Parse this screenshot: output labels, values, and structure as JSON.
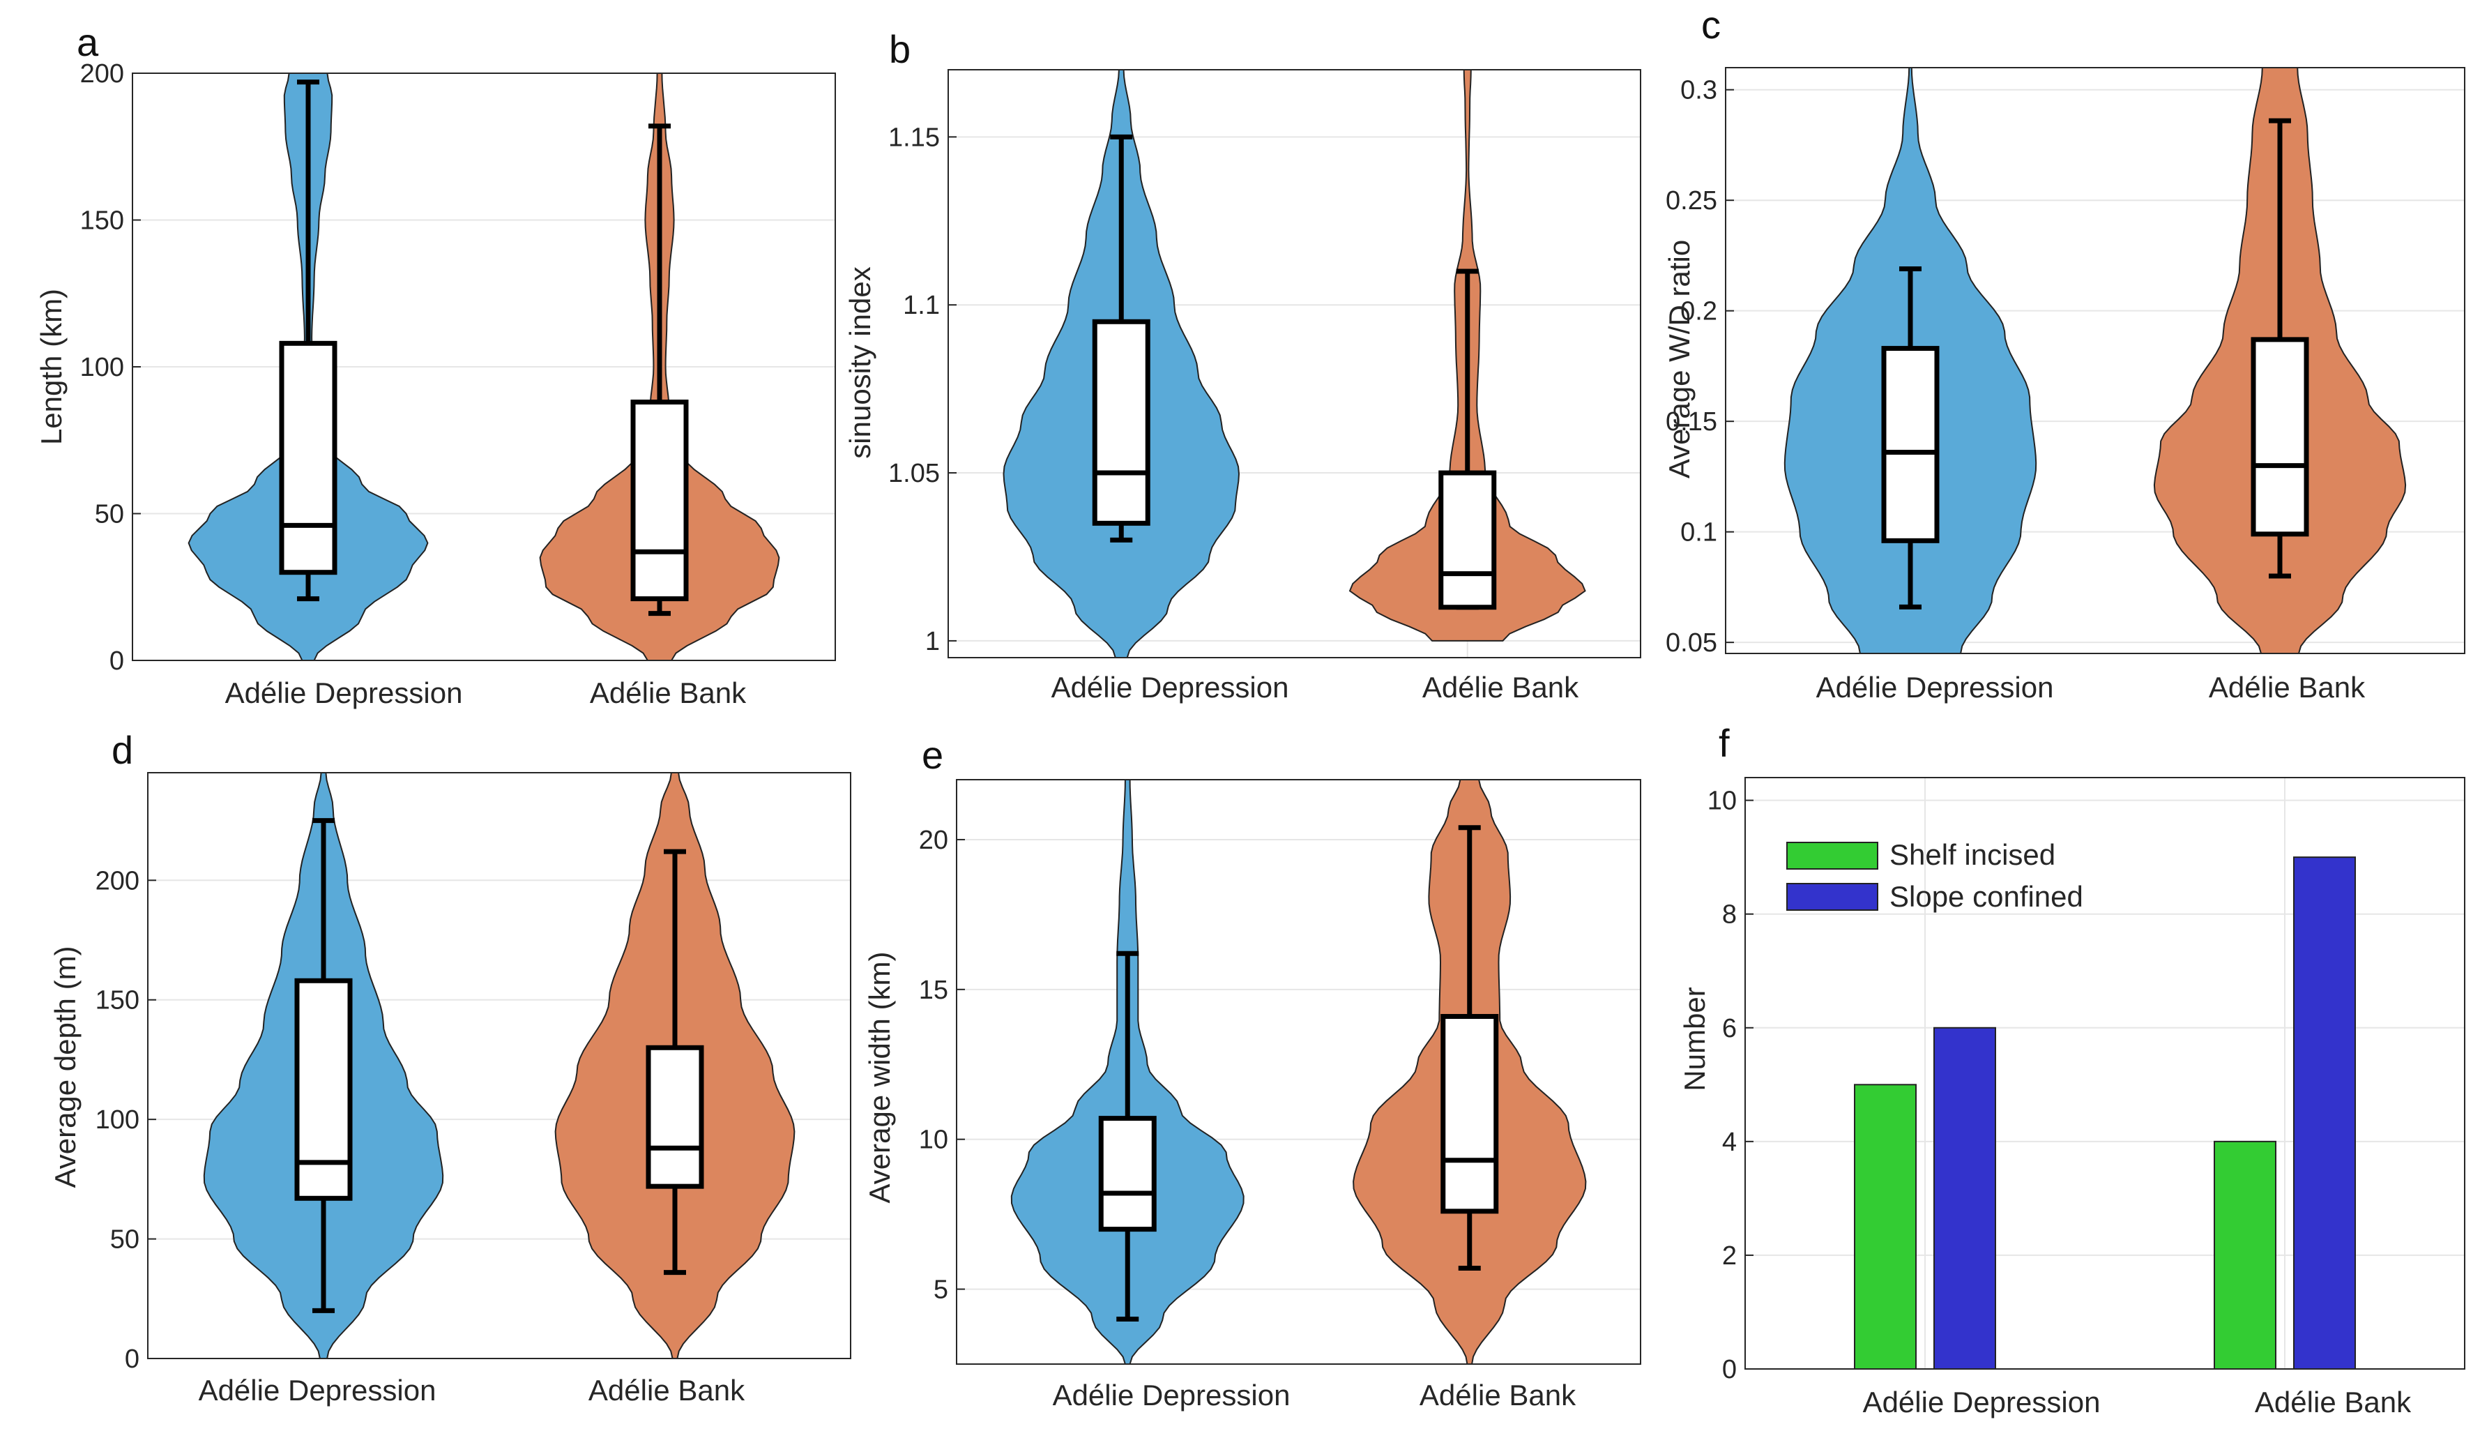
{
  "chart_data": [
    {
      "panel": "a",
      "type": "violin",
      "ylabel": "Length (km)",
      "ylim": [
        0,
        200
      ],
      "yticks": [
        0,
        50,
        100,
        150,
        200
      ],
      "categories": [
        "Adélie Depression",
        "Adélie Bank"
      ],
      "groups": [
        {
          "name": "Adélie Depression",
          "color": "#5aaad8",
          "whisker_low": 21,
          "q1": 30,
          "median": 46,
          "q3": 108,
          "whisker_high": 197,
          "violin_lo": 0,
          "violin_hi": 200,
          "profile": [
            [
              0,
              0.05
            ],
            [
              15,
              0.45
            ],
            [
              30,
              0.85
            ],
            [
              40,
              1.0
            ],
            [
              50,
              0.82
            ],
            [
              60,
              0.45
            ],
            [
              75,
              0.12
            ],
            [
              90,
              0.05
            ],
            [
              110,
              0.03
            ],
            [
              130,
              0.05
            ],
            [
              150,
              0.09
            ],
            [
              165,
              0.14
            ],
            [
              180,
              0.19
            ],
            [
              192,
              0.2
            ],
            [
              200,
              0.16
            ]
          ]
        },
        {
          "name": "Adélie Bank",
          "color": "#dc865e",
          "whisker_low": 16,
          "q1": 21,
          "median": 37,
          "q3": 88,
          "whisker_high": 182,
          "violin_lo": 0,
          "violin_hi": 200,
          "profile": [
            [
              0,
              0.1
            ],
            [
              15,
              0.6
            ],
            [
              25,
              0.95
            ],
            [
              35,
              1.0
            ],
            [
              45,
              0.85
            ],
            [
              55,
              0.55
            ],
            [
              70,
              0.2
            ],
            [
              85,
              0.08
            ],
            [
              100,
              0.05
            ],
            [
              115,
              0.06
            ],
            [
              130,
              0.08
            ],
            [
              150,
              0.12
            ],
            [
              165,
              0.1
            ],
            [
              180,
              0.05
            ],
            [
              200,
              0.02
            ]
          ]
        }
      ]
    },
    {
      "panel": "b",
      "type": "violin",
      "ylabel": "sinuosity index",
      "ylim": [
        0.995,
        1.17
      ],
      "yticks": [
        1,
        1.05,
        1.1,
        1.15
      ],
      "ytick_labels": [
        "1",
        "1.05",
        "1.1",
        "1.15"
      ],
      "categories": [
        "Adélie Depression",
        "Adélie Bank"
      ],
      "groups": [
        {
          "name": "Adélie Depression",
          "color": "#5aaad8",
          "whisker_low": 1.03,
          "q1": 1.035,
          "median": 1.05,
          "q3": 1.095,
          "whisker_high": 1.15,
          "violin_lo": 0.995,
          "violin_hi": 1.17,
          "profile": [
            [
              0.995,
              0.05
            ],
            [
              1.01,
              0.4
            ],
            [
              1.025,
              0.75
            ],
            [
              1.04,
              0.97
            ],
            [
              1.05,
              1.0
            ],
            [
              1.065,
              0.85
            ],
            [
              1.08,
              0.65
            ],
            [
              1.1,
              0.45
            ],
            [
              1.12,
              0.3
            ],
            [
              1.14,
              0.16
            ],
            [
              1.155,
              0.08
            ],
            [
              1.17,
              0.02
            ]
          ]
        },
        {
          "name": "Adélie Bank",
          "color": "#dc865e",
          "whisker_low": 1.01,
          "q1": 1.01,
          "median": 1.02,
          "q3": 1.05,
          "whisker_high": 1.11,
          "violin_lo": 1.0,
          "violin_hi": 1.17,
          "profile": [
            [
              1.0,
              0.3
            ],
            [
              1.01,
              0.8
            ],
            [
              1.015,
              1.0
            ],
            [
              1.025,
              0.75
            ],
            [
              1.035,
              0.35
            ],
            [
              1.05,
              0.15
            ],
            [
              1.07,
              0.08
            ],
            [
              1.09,
              0.1
            ],
            [
              1.105,
              0.11
            ],
            [
              1.12,
              0.04
            ],
            [
              1.14,
              0.01
            ],
            [
              1.16,
              0.02
            ],
            [
              1.17,
              0.03
            ]
          ]
        }
      ]
    },
    {
      "panel": "c",
      "type": "violin",
      "ylabel": "Average W/D ratio",
      "ylim": [
        0.045,
        0.31
      ],
      "yticks": [
        0.05,
        0.1,
        0.15,
        0.2,
        0.25,
        0.3
      ],
      "ytick_labels": [
        "0.05",
        "0.1",
        "0.15",
        "0.2",
        "0.25",
        "0.3"
      ],
      "categories": [
        "Adélie Depression",
        "Adélie Bank"
      ],
      "groups": [
        {
          "name": "Adélie Depression",
          "color": "#5aaad8",
          "whisker_low": 0.066,
          "q1": 0.096,
          "median": 0.136,
          "q3": 0.183,
          "whisker_high": 0.219,
          "violin_lo": 0.045,
          "violin_hi": 0.31,
          "profile": [
            [
              0.045,
              0.4
            ],
            [
              0.07,
              0.65
            ],
            [
              0.1,
              0.88
            ],
            [
              0.13,
              1.0
            ],
            [
              0.16,
              0.95
            ],
            [
              0.19,
              0.75
            ],
            [
              0.22,
              0.45
            ],
            [
              0.25,
              0.2
            ],
            [
              0.28,
              0.06
            ],
            [
              0.31,
              0.01
            ]
          ]
        },
        {
          "name": "Adélie Bank",
          "color": "#dc865e",
          "whisker_low": 0.08,
          "q1": 0.099,
          "median": 0.13,
          "q3": 0.187,
          "whisker_high": 0.286,
          "violin_lo": 0.045,
          "violin_hi": 0.31,
          "profile": [
            [
              0.045,
              0.15
            ],
            [
              0.07,
              0.5
            ],
            [
              0.1,
              0.85
            ],
            [
              0.12,
              1.0
            ],
            [
              0.14,
              0.95
            ],
            [
              0.16,
              0.7
            ],
            [
              0.19,
              0.45
            ],
            [
              0.22,
              0.32
            ],
            [
              0.25,
              0.26
            ],
            [
              0.28,
              0.22
            ],
            [
              0.31,
              0.14
            ]
          ]
        }
      ]
    },
    {
      "panel": "d",
      "type": "violin",
      "ylabel": "Average depth (m)",
      "ylim": [
        0,
        245
      ],
      "yticks": [
        0,
        50,
        100,
        150,
        200
      ],
      "categories": [
        "Adélie Depression",
        "Adélie Bank"
      ],
      "groups": [
        {
          "name": "Adélie Depression",
          "color": "#5aaad8",
          "whisker_low": 20,
          "q1": 67,
          "median": 82,
          "q3": 158,
          "whisker_high": 225,
          "violin_lo": 0,
          "violin_hi": 245,
          "profile": [
            [
              0,
              0.03
            ],
            [
              25,
              0.35
            ],
            [
              50,
              0.75
            ],
            [
              75,
              1.0
            ],
            [
              95,
              0.95
            ],
            [
              115,
              0.7
            ],
            [
              140,
              0.5
            ],
            [
              170,
              0.35
            ],
            [
              200,
              0.2
            ],
            [
              230,
              0.08
            ],
            [
              245,
              0.02
            ]
          ]
        },
        {
          "name": "Adélie Bank",
          "color": "#dc865e",
          "whisker_low": 36,
          "q1": 72,
          "median": 88,
          "q3": 130,
          "whisker_high": 212,
          "violin_lo": 0,
          "violin_hi": 245,
          "profile": [
            [
              0,
              0.02
            ],
            [
              25,
              0.35
            ],
            [
              50,
              0.72
            ],
            [
              75,
              0.95
            ],
            [
              95,
              1.0
            ],
            [
              120,
              0.82
            ],
            [
              150,
              0.55
            ],
            [
              180,
              0.38
            ],
            [
              205,
              0.25
            ],
            [
              230,
              0.12
            ],
            [
              245,
              0.03
            ]
          ]
        }
      ]
    },
    {
      "panel": "e",
      "type": "violin",
      "ylabel": "Average width (km)",
      "ylim": [
        2.5,
        22
      ],
      "yticks": [
        5,
        10,
        15,
        20
      ],
      "categories": [
        "Adélie Depression",
        "Adélie Bank"
      ],
      "groups": [
        {
          "name": "Adélie Depression",
          "color": "#5aaad8",
          "whisker_low": 4.0,
          "q1": 7.0,
          "median": 8.2,
          "q3": 10.7,
          "whisker_high": 16.2,
          "violin_lo": 2.5,
          "violin_hi": 22,
          "profile": [
            [
              2.5,
              0.02
            ],
            [
              4,
              0.3
            ],
            [
              6,
              0.75
            ],
            [
              8,
              1.0
            ],
            [
              9.5,
              0.85
            ],
            [
              11,
              0.45
            ],
            [
              12.5,
              0.17
            ],
            [
              14,
              0.09
            ],
            [
              16,
              0.09
            ],
            [
              18,
              0.07
            ],
            [
              20,
              0.04
            ],
            [
              22,
              0.02
            ]
          ]
        },
        {
          "name": "Adélie Bank",
          "color": "#dc865e",
          "whisker_low": 5.7,
          "q1": 7.6,
          "median": 9.3,
          "q3": 14.1,
          "whisker_high": 20.4,
          "violin_lo": 2.5,
          "violin_hi": 22,
          "profile": [
            [
              2.5,
              0.02
            ],
            [
              4.5,
              0.3
            ],
            [
              6.5,
              0.75
            ],
            [
              8.5,
              1.0
            ],
            [
              10.5,
              0.85
            ],
            [
              12.5,
              0.45
            ],
            [
              14,
              0.26
            ],
            [
              16,
              0.25
            ],
            [
              18,
              0.35
            ],
            [
              19.5,
              0.33
            ],
            [
              21,
              0.18
            ],
            [
              22,
              0.08
            ]
          ]
        }
      ]
    },
    {
      "panel": "f",
      "type": "bar",
      "ylabel": "Number",
      "ylim": [
        0,
        10.4
      ],
      "yticks": [
        0,
        2,
        4,
        6,
        8,
        10
      ],
      "categories": [
        "Adélie Depression",
        "Adélie Bank"
      ],
      "series": [
        {
          "name": "Shelf incised",
          "color": "#33cc33",
          "values": [
            5,
            4
          ]
        },
        {
          "name": "Slope confined",
          "color": "#3333cc",
          "values": [
            6,
            9
          ]
        }
      ],
      "legend": "top-left"
    }
  ]
}
